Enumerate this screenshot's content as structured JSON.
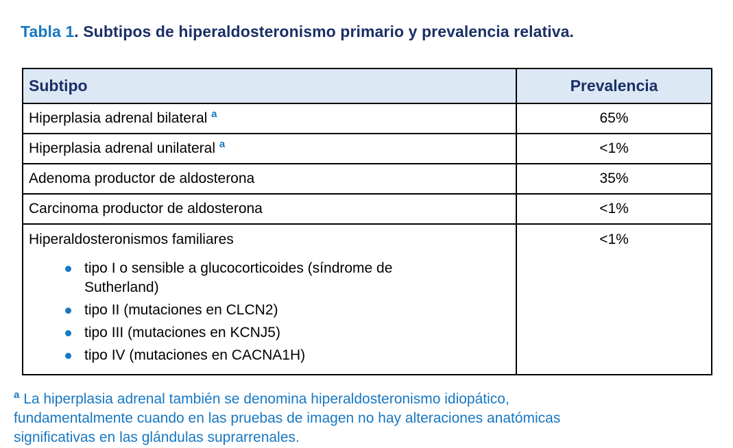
{
  "title": {
    "prefix": "Tabla 1",
    "rest": ". Subtipos de hiperaldosteronismo primario y prevalencia relativa."
  },
  "table": {
    "headers": [
      "Subtipo",
      "Prevalencia"
    ],
    "rows": [
      {
        "subtipo": "Hiperplasia adrenal bilateral",
        "sup": "a",
        "prevalencia": "65%"
      },
      {
        "subtipo": "Hiperplasia adrenal unilateral",
        "sup": "a",
        "prevalencia": "<1%"
      },
      {
        "subtipo": "Adenoma productor de aldosterona",
        "prevalencia": "35%"
      },
      {
        "subtipo": "Carcinoma productor de aldosterona",
        "prevalencia": "<1%"
      },
      {
        "subtipo": "Hiperaldosteronismos familiares",
        "prevalencia": "<1%",
        "sub_items": [
          "tipo I o sensible a glucocorticoides (síndrome de Sutherland)",
          "tipo II (mutaciones en CLCN2)",
          "tipo III (mutaciones en KCNJ5)",
          "tipo IV (mutaciones en CACNA1H)"
        ]
      }
    ]
  },
  "footnote": {
    "sup": "a",
    "text": "La hiperplasia adrenal también se denomina hiperaldosteronismo idiopático, fundamentalmente cuando en las pruebas de imagen no hay alteraciones anatómicas significativas en las glándulas suprarrenales."
  },
  "colors": {
    "accent_blue": "#1777C2",
    "dark_navy": "#1A2F66",
    "header_bg": "#DCE8F4",
    "border": "#000000",
    "body_text": "#000000"
  }
}
